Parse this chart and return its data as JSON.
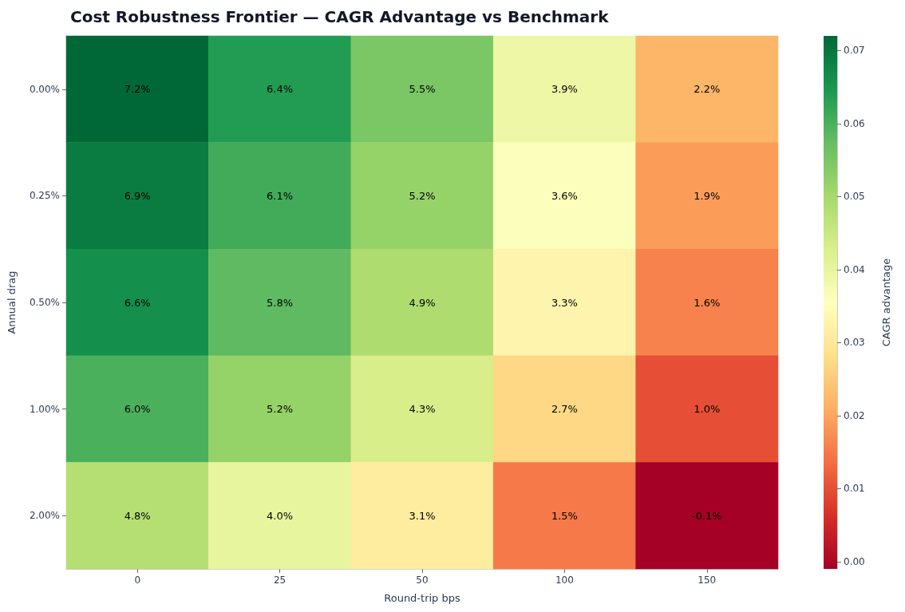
{
  "chart_data": {
    "type": "heatmap",
    "title": "Cost Robustness Frontier — CAGR Advantage vs Benchmark",
    "xlabel": "Round-trip bps",
    "ylabel": "Annual drag",
    "clabel": "CAGR advantage",
    "categories": [
      "0",
      "25",
      "50",
      "100",
      "150"
    ],
    "y_categories": [
      "0.00%",
      "0.25%",
      "0.50%",
      "1.00%",
      "2.00%"
    ],
    "cells": [
      [
        0.072,
        0.064,
        0.055,
        0.039,
        0.022
      ],
      [
        0.069,
        0.061,
        0.052,
        0.036,
        0.019
      ],
      [
        0.066,
        0.058,
        0.049,
        0.033,
        0.016
      ],
      [
        0.06,
        0.052,
        0.043,
        0.027,
        0.01
      ],
      [
        0.048,
        0.04,
        0.031,
        0.015,
        -0.001
      ]
    ],
    "cell_labels": [
      [
        "7.2%",
        "6.4%",
        "5.5%",
        "3.9%",
        "2.2%"
      ],
      [
        "6.9%",
        "6.1%",
        "5.2%",
        "3.6%",
        "1.9%"
      ],
      [
        "6.6%",
        "5.8%",
        "4.9%",
        "3.3%",
        "1.6%"
      ],
      [
        "6.0%",
        "5.2%",
        "4.3%",
        "2.7%",
        "1.0%"
      ],
      [
        "4.8%",
        "4.0%",
        "3.1%",
        "1.5%",
        "-0.1%"
      ]
    ],
    "clim": [
      -0.001,
      0.072
    ],
    "cticks": [
      {
        "value": 0,
        "label": "0.00"
      },
      {
        "value": 0.01,
        "label": "0.01"
      },
      {
        "value": 0.02,
        "label": "0.02"
      },
      {
        "value": 0.03,
        "label": "0.03"
      },
      {
        "value": 0.04,
        "label": "0.04"
      },
      {
        "value": 0.05,
        "label": "0.05"
      },
      {
        "value": 0.06,
        "label": "0.06"
      },
      {
        "value": 0.07,
        "label": "0.07"
      }
    ],
    "colors": [
      "#a50026",
      "#d73027",
      "#f46d43",
      "#fdae61",
      "#fee08b",
      "#ffffbf",
      "#d9ef8b",
      "#a6d96a",
      "#66bd63",
      "#1a9850",
      "#006837"
    ]
  }
}
